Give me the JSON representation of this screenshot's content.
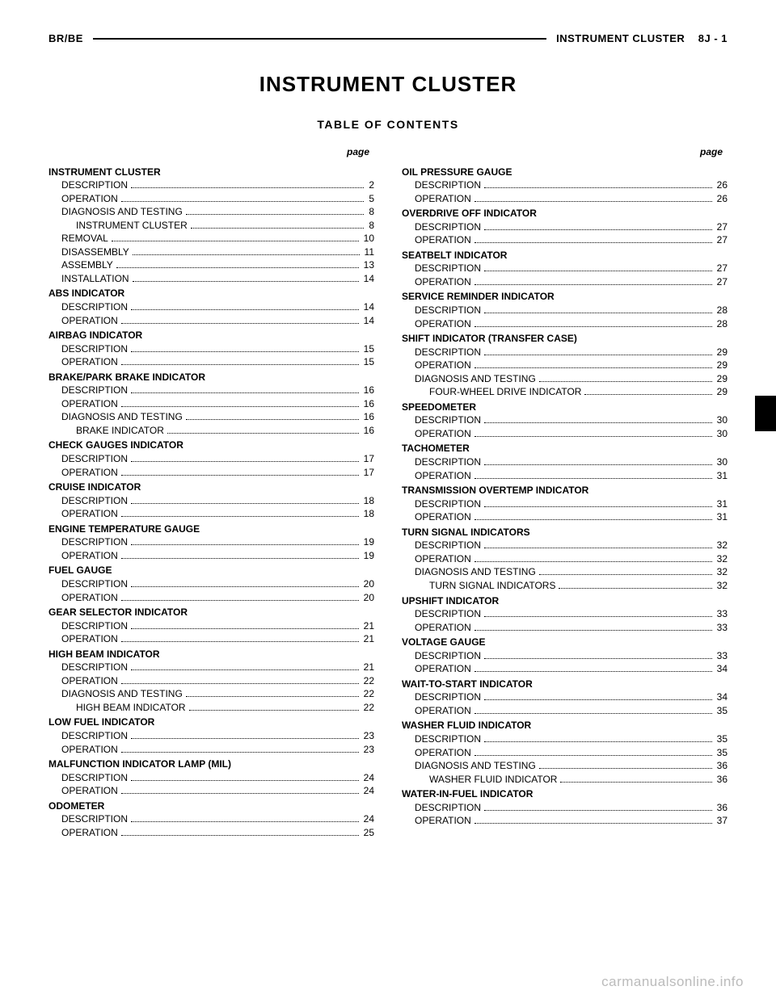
{
  "header": {
    "left": "BR/BE",
    "right_title": "INSTRUMENT CLUSTER",
    "right_page": "8J - 1"
  },
  "title": "INSTRUMENT CLUSTER",
  "subtitle": "TABLE OF CONTENTS",
  "page_label": "page",
  "footer": "carmanualsonline.info",
  "left_sections": [
    {
      "h": "INSTRUMENT CLUSTER",
      "rows": [
        {
          "t": "DESCRIPTION",
          "p": "2",
          "i": 1
        },
        {
          "t": "OPERATION",
          "p": "5",
          "i": 1
        },
        {
          "t": "DIAGNOSIS AND TESTING",
          "p": "8",
          "i": 1
        },
        {
          "t": "INSTRUMENT CLUSTER",
          "p": "8",
          "i": 2
        },
        {
          "t": "REMOVAL",
          "p": "10",
          "i": 1
        },
        {
          "t": "DISASSEMBLY",
          "p": "11",
          "i": 1
        },
        {
          "t": "ASSEMBLY",
          "p": "13",
          "i": 1
        },
        {
          "t": "INSTALLATION",
          "p": "14",
          "i": 1
        }
      ]
    },
    {
      "h": "ABS INDICATOR",
      "rows": [
        {
          "t": "DESCRIPTION",
          "p": "14",
          "i": 1
        },
        {
          "t": "OPERATION",
          "p": "14",
          "i": 1
        }
      ]
    },
    {
      "h": "AIRBAG INDICATOR",
      "rows": [
        {
          "t": "DESCRIPTION",
          "p": "15",
          "i": 1
        },
        {
          "t": "OPERATION",
          "p": "15",
          "i": 1
        }
      ]
    },
    {
      "h": "BRAKE/PARK BRAKE INDICATOR",
      "rows": [
        {
          "t": "DESCRIPTION",
          "p": "16",
          "i": 1
        },
        {
          "t": "OPERATION",
          "p": "16",
          "i": 1
        },
        {
          "t": "DIAGNOSIS AND TESTING",
          "p": "16",
          "i": 1
        },
        {
          "t": "BRAKE INDICATOR",
          "p": "16",
          "i": 2
        }
      ]
    },
    {
      "h": "CHECK GAUGES INDICATOR",
      "rows": [
        {
          "t": "DESCRIPTION",
          "p": "17",
          "i": 1
        },
        {
          "t": "OPERATION",
          "p": "17",
          "i": 1
        }
      ]
    },
    {
      "h": "CRUISE INDICATOR",
      "rows": [
        {
          "t": "DESCRIPTION",
          "p": "18",
          "i": 1
        },
        {
          "t": "OPERATION",
          "p": "18",
          "i": 1
        }
      ]
    },
    {
      "h": "ENGINE TEMPERATURE GAUGE",
      "rows": [
        {
          "t": "DESCRIPTION",
          "p": "19",
          "i": 1
        },
        {
          "t": "OPERATION",
          "p": "19",
          "i": 1
        }
      ]
    },
    {
      "h": "FUEL GAUGE",
      "rows": [
        {
          "t": "DESCRIPTION",
          "p": "20",
          "i": 1
        },
        {
          "t": "OPERATION",
          "p": "20",
          "i": 1
        }
      ]
    },
    {
      "h": "GEAR SELECTOR INDICATOR",
      "rows": [
        {
          "t": "DESCRIPTION",
          "p": "21",
          "i": 1
        },
        {
          "t": "OPERATION",
          "p": "21",
          "i": 1
        }
      ]
    },
    {
      "h": "HIGH BEAM INDICATOR",
      "rows": [
        {
          "t": "DESCRIPTION",
          "p": "21",
          "i": 1
        },
        {
          "t": "OPERATION",
          "p": "22",
          "i": 1
        },
        {
          "t": "DIAGNOSIS AND TESTING",
          "p": "22",
          "i": 1
        },
        {
          "t": "HIGH BEAM INDICATOR",
          "p": "22",
          "i": 2
        }
      ]
    },
    {
      "h": "LOW FUEL INDICATOR",
      "rows": [
        {
          "t": "DESCRIPTION",
          "p": "23",
          "i": 1
        },
        {
          "t": "OPERATION",
          "p": "23",
          "i": 1
        }
      ]
    },
    {
      "h": "MALFUNCTION INDICATOR LAMP (MIL)",
      "rows": [
        {
          "t": "DESCRIPTION",
          "p": "24",
          "i": 1
        },
        {
          "t": "OPERATION",
          "p": "24",
          "i": 1
        }
      ]
    },
    {
      "h": "ODOMETER",
      "rows": [
        {
          "t": "DESCRIPTION",
          "p": "24",
          "i": 1
        },
        {
          "t": "OPERATION",
          "p": "25",
          "i": 1
        }
      ]
    }
  ],
  "right_sections": [
    {
      "h": "OIL PRESSURE GAUGE",
      "rows": [
        {
          "t": "DESCRIPTION",
          "p": "26",
          "i": 1
        },
        {
          "t": "OPERATION",
          "p": "26",
          "i": 1
        }
      ]
    },
    {
      "h": "OVERDRIVE OFF INDICATOR",
      "rows": [
        {
          "t": "DESCRIPTION",
          "p": "27",
          "i": 1
        },
        {
          "t": "OPERATION",
          "p": "27",
          "i": 1
        }
      ]
    },
    {
      "h": "SEATBELT INDICATOR",
      "rows": [
        {
          "t": "DESCRIPTION",
          "p": "27",
          "i": 1
        },
        {
          "t": "OPERATION",
          "p": "27",
          "i": 1
        }
      ]
    },
    {
      "h": "SERVICE REMINDER INDICATOR",
      "rows": [
        {
          "t": "DESCRIPTION",
          "p": "28",
          "i": 1
        },
        {
          "t": "OPERATION",
          "p": "28",
          "i": 1
        }
      ]
    },
    {
      "h": "SHIFT INDICATOR (TRANSFER CASE)",
      "rows": [
        {
          "t": "DESCRIPTION",
          "p": "29",
          "i": 1
        },
        {
          "t": "OPERATION",
          "p": "29",
          "i": 1
        },
        {
          "t": "DIAGNOSIS AND TESTING",
          "p": "29",
          "i": 1
        },
        {
          "t": "FOUR-WHEEL DRIVE INDICATOR",
          "p": "29",
          "i": 2
        }
      ]
    },
    {
      "h": "SPEEDOMETER",
      "rows": [
        {
          "t": "DESCRIPTION",
          "p": "30",
          "i": 1
        },
        {
          "t": "OPERATION",
          "p": "30",
          "i": 1
        }
      ]
    },
    {
      "h": "TACHOMETER",
      "rows": [
        {
          "t": "DESCRIPTION",
          "p": "30",
          "i": 1
        },
        {
          "t": "OPERATION",
          "p": "31",
          "i": 1
        }
      ]
    },
    {
      "h": "TRANSMISSION OVERTEMP INDICATOR",
      "rows": [
        {
          "t": "DESCRIPTION",
          "p": "31",
          "i": 1
        },
        {
          "t": "OPERATION",
          "p": "31",
          "i": 1
        }
      ]
    },
    {
      "h": "TURN SIGNAL INDICATORS",
      "rows": [
        {
          "t": "DESCRIPTION",
          "p": "32",
          "i": 1
        },
        {
          "t": "OPERATION",
          "p": "32",
          "i": 1
        },
        {
          "t": "DIAGNOSIS AND TESTING",
          "p": "32",
          "i": 1
        },
        {
          "t": "TURN SIGNAL INDICATORS",
          "p": "32",
          "i": 2
        }
      ]
    },
    {
      "h": "UPSHIFT INDICATOR",
      "rows": [
        {
          "t": "DESCRIPTION",
          "p": "33",
          "i": 1
        },
        {
          "t": "OPERATION",
          "p": "33",
          "i": 1
        }
      ]
    },
    {
      "h": "VOLTAGE GAUGE",
      "rows": [
        {
          "t": "DESCRIPTION",
          "p": "33",
          "i": 1
        },
        {
          "t": "OPERATION",
          "p": "34",
          "i": 1
        }
      ]
    },
    {
      "h": "WAIT-TO-START INDICATOR",
      "rows": [
        {
          "t": "DESCRIPTION",
          "p": "34",
          "i": 1
        },
        {
          "t": "OPERATION",
          "p": "35",
          "i": 1
        }
      ]
    },
    {
      "h": "WASHER FLUID INDICATOR",
      "rows": [
        {
          "t": "DESCRIPTION",
          "p": "35",
          "i": 1
        },
        {
          "t": "OPERATION",
          "p": "35",
          "i": 1
        },
        {
          "t": "DIAGNOSIS AND TESTING",
          "p": "36",
          "i": 1
        },
        {
          "t": "WASHER FLUID INDICATOR",
          "p": "36",
          "i": 2
        }
      ]
    },
    {
      "h": "WATER-IN-FUEL INDICATOR",
      "rows": [
        {
          "t": "DESCRIPTION",
          "p": "36",
          "i": 1
        },
        {
          "t": "OPERATION",
          "p": "37",
          "i": 1
        }
      ]
    }
  ]
}
